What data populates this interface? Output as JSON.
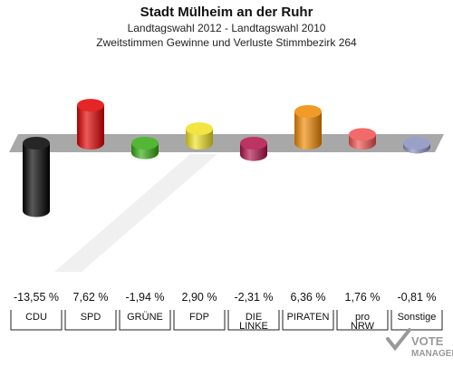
{
  "chart_data": {
    "type": "bar",
    "title": "Stadt Mülheim an der Ruhr",
    "subtitle": "Landtagswahl 2012 - Landtagswahl 2010",
    "subtitle2": "Zweitstimmen Gewinne und Verluste Stimmbezirk 264",
    "categories": [
      "CDU",
      "SPD",
      "GRÜNE",
      "FDP",
      "DIE LINKE",
      "PIRATEN",
      "pro NRW",
      "Sonstige"
    ],
    "category_lines": [
      [
        "CDU"
      ],
      [
        "SPD"
      ],
      [
        "GRÜNE"
      ],
      [
        "FDP"
      ],
      [
        "DIE",
        "LINKE"
      ],
      [
        "PIRATEN"
      ],
      [
        "pro",
        "NRW"
      ],
      [
        "Sonstige"
      ]
    ],
    "values": [
      -13.55,
      7.62,
      -1.94,
      2.9,
      -2.31,
      6.36,
      1.76,
      -0.81
    ],
    "value_labels": [
      "-13,55 %",
      "7,62 %",
      "-1,94 %",
      "2,90 %",
      "-2,31 %",
      "6,36 %",
      "1,76 %",
      "-0,81 %"
    ],
    "colors": [
      "#000000",
      "#e00000",
      "#33aa11",
      "#f0e020",
      "#b01048",
      "#f08800",
      "#f05050",
      "#8890c0"
    ],
    "grid": false,
    "legend": "none"
  },
  "watermark": {
    "line1": "VOTE",
    "line2": "MANAGER"
  }
}
